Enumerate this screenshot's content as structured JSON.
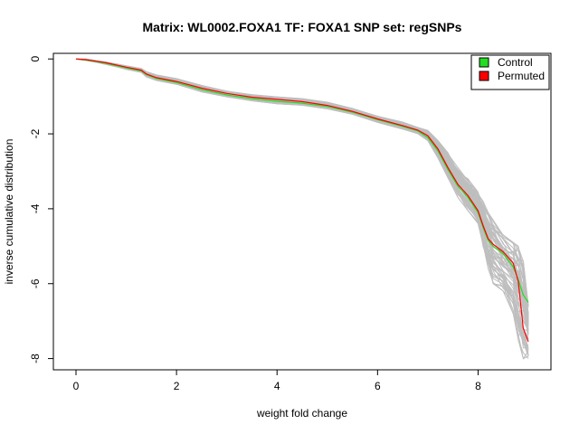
{
  "chart_data": {
    "type": "line",
    "title": "Matrix: WL0002.FOXA1 TF: FOXA1 SNP set: regSNPs",
    "xlabel": "weight fold change",
    "ylabel": "inverse cumulative distribution",
    "xlim": [
      -0.45,
      9.45
    ],
    "ylim": [
      -8.3,
      0.15
    ],
    "xticks": [
      0,
      2,
      4,
      6,
      8
    ],
    "yticks": [
      0,
      -2,
      -4,
      -6,
      -8
    ],
    "grid": false,
    "legend_position": "top-right",
    "colors": {
      "Control": "#22dd22",
      "Permuted": "#ff0000",
      "permutation_band": "#bebebe"
    },
    "legend": [
      {
        "label": "Control",
        "color": "#22dd22"
      },
      {
        "label": "Permuted",
        "color": "#ff0000"
      }
    ],
    "series": [
      {
        "name": "Control",
        "x": [
          0,
          0.2,
          0.4,
          0.6,
          0.8,
          1.0,
          1.3,
          1.4,
          1.6,
          2.0,
          2.5,
          3.0,
          3.5,
          4.0,
          4.5,
          5.0,
          5.5,
          6.0,
          6.5,
          6.8,
          7.0,
          7.2,
          7.4,
          7.6,
          7.8,
          8.0,
          8.1,
          8.2,
          8.3,
          8.5,
          8.7,
          8.8,
          8.9,
          9.0
        ],
        "y": [
          0,
          -0.03,
          -0.07,
          -0.12,
          -0.18,
          -0.24,
          -0.32,
          -0.42,
          -0.52,
          -0.63,
          -0.82,
          -0.96,
          -1.06,
          -1.13,
          -1.18,
          -1.27,
          -1.42,
          -1.62,
          -1.8,
          -1.92,
          -2.1,
          -2.45,
          -2.95,
          -3.4,
          -3.7,
          -4.1,
          -4.5,
          -4.85,
          -5.0,
          -5.2,
          -5.55,
          -5.9,
          -6.3,
          -6.5
        ]
      },
      {
        "name": "Permuted",
        "x": [
          0,
          0.2,
          0.4,
          0.6,
          0.8,
          1.0,
          1.3,
          1.4,
          1.6,
          2.0,
          2.5,
          3.0,
          3.5,
          4.0,
          4.5,
          5.0,
          5.5,
          6.0,
          6.5,
          6.8,
          7.0,
          7.2,
          7.4,
          7.6,
          7.8,
          8.0,
          8.1,
          8.2,
          8.3,
          8.5,
          8.7,
          8.8,
          8.9,
          9.0
        ],
        "y": [
          0,
          -0.02,
          -0.06,
          -0.1,
          -0.16,
          -0.22,
          -0.3,
          -0.4,
          -0.5,
          -0.6,
          -0.78,
          -0.92,
          -1.02,
          -1.08,
          -1.14,
          -1.24,
          -1.4,
          -1.6,
          -1.78,
          -1.9,
          -2.05,
          -2.4,
          -2.9,
          -3.35,
          -3.65,
          -4.05,
          -4.45,
          -4.8,
          -4.95,
          -5.15,
          -5.45,
          -5.95,
          -7.2,
          -7.55
        ]
      }
    ],
    "permutation_band": {
      "x": [
        0,
        0.2,
        0.4,
        0.6,
        0.8,
        1.0,
        1.3,
        1.4,
        1.6,
        2.0,
        2.5,
        3.0,
        3.5,
        4.0,
        4.5,
        5.0,
        5.5,
        6.0,
        6.5,
        6.8,
        7.0,
        7.2,
        7.4,
        7.6,
        7.8,
        8.0,
        8.1,
        8.2,
        8.3,
        8.5,
        8.7,
        8.8,
        8.9,
        9.0
      ],
      "upper": [
        0,
        0,
        -0.04,
        -0.08,
        -0.13,
        -0.18,
        -0.25,
        -0.33,
        -0.42,
        -0.52,
        -0.7,
        -0.85,
        -0.95,
        -1.0,
        -1.05,
        -1.15,
        -1.32,
        -1.52,
        -1.68,
        -1.82,
        -1.9,
        -2.15,
        -2.5,
        -2.9,
        -3.2,
        -3.55,
        -3.8,
        -4.1,
        -4.3,
        -4.7,
        -4.9,
        -5.0,
        -5.4,
        -6.6
      ],
      "lower": [
        0,
        -0.04,
        -0.09,
        -0.15,
        -0.21,
        -0.28,
        -0.36,
        -0.48,
        -0.58,
        -0.68,
        -0.88,
        -1.02,
        -1.12,
        -1.2,
        -1.24,
        -1.34,
        -1.48,
        -1.7,
        -1.88,
        -2.0,
        -2.2,
        -2.65,
        -3.2,
        -3.7,
        -4.05,
        -4.4,
        -5.1,
        -5.6,
        -6.0,
        -6.2,
        -6.8,
        -7.5,
        -8.0,
        -8.0
      ]
    },
    "permutation_line_count": 60
  }
}
